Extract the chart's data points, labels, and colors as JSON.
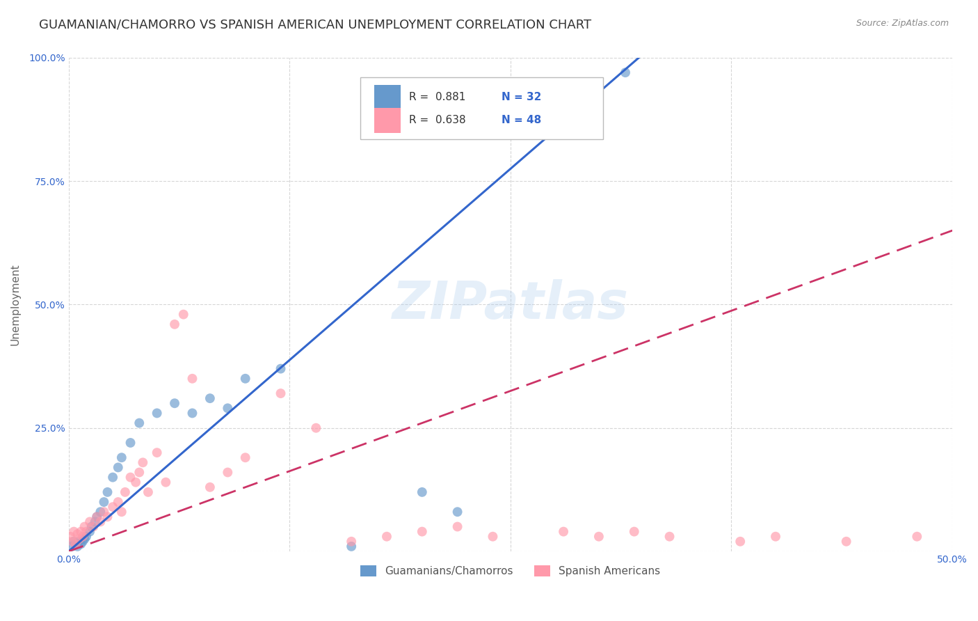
{
  "title": "GUAMANIAN/CHAMORRO VS SPANISH AMERICAN UNEMPLOYMENT CORRELATION CHART",
  "source": "Source: ZipAtlas.com",
  "ylabel": "Unemployment",
  "watermark": "ZIPatlas",
  "blue_R": 0.881,
  "blue_N": 32,
  "pink_R": 0.638,
  "pink_N": 48,
  "blue_color": "#6699CC",
  "pink_color": "#FF99AA",
  "blue_line_color": "#3366CC",
  "pink_line_color": "#CC3366",
  "legend_label_blue": "Guamanians/Chamorros",
  "legend_label_pink": "Spanish Americans",
  "blue_scatter_x": [
    0.002,
    0.003,
    0.004,
    0.005,
    0.006,
    0.007,
    0.008,
    0.009,
    0.01,
    0.012,
    0.013,
    0.015,
    0.016,
    0.018,
    0.02,
    0.022,
    0.025,
    0.028,
    0.03,
    0.035,
    0.04,
    0.05,
    0.06,
    0.07,
    0.08,
    0.09,
    0.1,
    0.12,
    0.16,
    0.2,
    0.22,
    0.315
  ],
  "blue_scatter_y": [
    0.01,
    0.02,
    0.015,
    0.01,
    0.02,
    0.015,
    0.02,
    0.025,
    0.03,
    0.04,
    0.05,
    0.06,
    0.07,
    0.08,
    0.1,
    0.12,
    0.15,
    0.17,
    0.19,
    0.22,
    0.26,
    0.28,
    0.3,
    0.28,
    0.31,
    0.29,
    0.35,
    0.37,
    0.01,
    0.12,
    0.08,
    0.97
  ],
  "pink_scatter_x": [
    0.001,
    0.002,
    0.003,
    0.004,
    0.005,
    0.006,
    0.007,
    0.008,
    0.009,
    0.01,
    0.012,
    0.014,
    0.016,
    0.018,
    0.02,
    0.022,
    0.025,
    0.028,
    0.03,
    0.032,
    0.035,
    0.038,
    0.04,
    0.042,
    0.045,
    0.05,
    0.055,
    0.06,
    0.065,
    0.07,
    0.08,
    0.09,
    0.1,
    0.12,
    0.14,
    0.16,
    0.18,
    0.2,
    0.22,
    0.24,
    0.28,
    0.3,
    0.32,
    0.34,
    0.38,
    0.4,
    0.44,
    0.48
  ],
  "pink_scatter_y": [
    0.03,
    0.02,
    0.04,
    0.015,
    0.035,
    0.025,
    0.04,
    0.03,
    0.05,
    0.04,
    0.06,
    0.05,
    0.07,
    0.06,
    0.08,
    0.07,
    0.09,
    0.1,
    0.08,
    0.12,
    0.15,
    0.14,
    0.16,
    0.18,
    0.12,
    0.2,
    0.14,
    0.46,
    0.48,
    0.35,
    0.13,
    0.16,
    0.19,
    0.32,
    0.25,
    0.02,
    0.03,
    0.04,
    0.05,
    0.03,
    0.04,
    0.03,
    0.04,
    0.03,
    0.02,
    0.03,
    0.02,
    0.03
  ],
  "xlim": [
    0.0,
    0.5
  ],
  "ylim": [
    0.0,
    1.0
  ],
  "title_fontsize": 13,
  "tick_fontsize": 10
}
